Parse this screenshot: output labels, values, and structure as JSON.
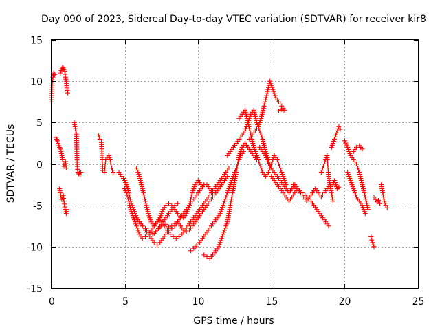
{
  "chart_data": {
    "type": "scatter",
    "title": "Day 090 of 2023, Sidereal Day-to-day VTEC variation (SDTVAR) for receiver kir8",
    "xlabel": "GPS time / hours",
    "ylabel": "SDTVAR / TECUs",
    "xlim": [
      0,
      25
    ],
    "ylim": [
      -15,
      15
    ],
    "xticks": [
      0,
      5,
      10,
      15,
      20,
      25
    ],
    "xtick_labels": [
      "0",
      "5",
      "10",
      "15",
      "20",
      "25"
    ],
    "yticks": [
      -15,
      -10,
      -5,
      0,
      5,
      10,
      15
    ],
    "ytick_labels": [
      "-15",
      "-10",
      "-5",
      "0",
      "5",
      "10",
      "15"
    ],
    "grid": true,
    "marker": "plus",
    "color": "#ff0000",
    "series": [
      {
        "name": "s01",
        "x": [
          0.0,
          0.05,
          0.1,
          0.15,
          0.2
        ],
        "y": [
          7.5,
          9.8,
          10.5,
          11.0,
          10.8
        ]
      },
      {
        "name": "s02",
        "x": [
          0.3,
          0.35,
          0.4,
          0.45,
          0.5,
          0.55,
          0.6,
          0.65,
          0.7,
          0.75,
          0.8,
          0.85,
          0.9,
          0.95,
          1.0
        ],
        "y": [
          3.2,
          3.0,
          2.8,
          2.5,
          2.2,
          2.0,
          1.8,
          1.5,
          1.0,
          0.5,
          0.0,
          -0.3,
          0.0,
          0.3,
          -0.5
        ]
      },
      {
        "name": "s03",
        "x": [
          0.6,
          0.65,
          0.7,
          0.75,
          0.8,
          0.85,
          0.9,
          0.95,
          1.0,
          1.05,
          1.1
        ],
        "y": [
          11.0,
          11.3,
          11.5,
          11.7,
          11.6,
          11.4,
          11.2,
          10.5,
          10.0,
          9.2,
          8.6
        ]
      },
      {
        "name": "s04",
        "x": [
          0.55,
          0.6,
          0.65,
          0.7,
          0.75,
          0.8,
          0.85,
          0.9,
          0.95,
          1.0,
          1.05
        ],
        "y": [
          -3.0,
          -3.5,
          -4.0,
          -4.3,
          -4.0,
          -3.8,
          -4.5,
          -5.2,
          -5.8,
          -6.0,
          -5.5
        ]
      },
      {
        "name": "s05",
        "x": [
          1.55,
          1.6,
          1.65,
          1.7,
          1.75,
          1.8,
          1.85,
          1.9,
          1.95,
          2.0
        ],
        "y": [
          5.0,
          4.5,
          4.0,
          3.6,
          -0.3,
          -1.0,
          -1.2,
          -1.1,
          -1.3,
          -1.0
        ]
      },
      {
        "name": "s06",
        "x": [
          3.2,
          3.3,
          3.4,
          3.5,
          3.6,
          3.7,
          3.8,
          3.9,
          4.0,
          4.1,
          4.2
        ],
        "y": [
          3.5,
          3.0,
          2.6,
          -0.8,
          -1.0,
          0.5,
          0.8,
          1.0,
          0.5,
          -0.5,
          -1.0
        ]
      },
      {
        "name": "s07",
        "x": [
          4.6,
          4.8,
          5.0,
          5.2,
          5.4,
          5.6,
          5.8,
          6.0,
          6.2,
          6.4,
          6.6,
          6.8,
          7.0,
          7.2,
          7.4,
          7.6,
          7.8,
          8.0,
          8.2,
          8.4,
          8.6
        ],
        "y": [
          -1.0,
          -1.5,
          -2.0,
          -3.0,
          -4.5,
          -5.5,
          -6.5,
          -7.0,
          -7.5,
          -7.8,
          -8.0,
          -8.2,
          -8.4,
          -8.0,
          -7.6,
          -7.0,
          -6.5,
          -6.0,
          -5.5,
          -5.0,
          -4.8
        ]
      },
      {
        "name": "s08",
        "x": [
          5.8,
          6.0,
          6.2,
          6.4,
          6.6,
          6.8,
          7.0,
          7.2,
          7.4,
          7.6,
          7.8,
          8.0,
          8.2,
          8.4,
          8.6,
          8.8,
          9.0,
          9.2,
          9.4,
          9.6,
          9.8,
          10.0,
          10.2
        ],
        "y": [
          -0.5,
          -1.5,
          -3.0,
          -4.5,
          -6.0,
          -7.0,
          -7.5,
          -7.0,
          -6.5,
          -5.5,
          -5.0,
          -4.8,
          -5.0,
          -5.5,
          -6.0,
          -6.3,
          -6.5,
          -6.0,
          -5.0,
          -3.5,
          -2.5,
          -2.0,
          -2.5
        ]
      },
      {
        "name": "s09",
        "x": [
          5.0,
          5.2,
          5.4,
          5.6,
          5.8,
          6.0,
          6.2,
          6.4,
          6.6,
          6.8,
          7.0,
          7.2,
          7.4,
          7.6,
          7.8,
          8.0,
          8.2,
          8.4,
          8.6,
          8.8,
          9.0,
          9.2,
          9.4,
          9.6,
          9.8,
          10.0,
          10.2,
          10.4,
          10.6,
          10.8,
          11.0,
          11.2,
          11.4
        ],
        "y": [
          -3.0,
          -4.0,
          -5.5,
          -6.5,
          -7.5,
          -8.5,
          -9.0,
          -8.8,
          -8.5,
          -8.0,
          -7.5,
          -7.0,
          -6.8,
          -7.0,
          -7.3,
          -7.6,
          -7.8,
          -7.5,
          -7.0,
          -6.5,
          -6.0,
          -5.5,
          -5.0,
          -4.5,
          -4.0,
          -3.5,
          -3.0,
          -2.5,
          -2.5,
          -3.0,
          -3.5,
          -3.5,
          -3.0
        ]
      },
      {
        "name": "s10",
        "x": [
          6.0,
          6.2,
          6.4,
          6.6,
          6.8,
          7.0,
          7.2,
          7.4,
          7.6,
          7.8,
          8.0,
          8.2,
          8.4,
          8.6,
          8.8,
          9.0,
          9.2,
          9.4,
          9.6,
          9.8,
          10.0,
          10.2,
          10.4,
          10.6,
          10.8,
          11.0,
          11.2,
          11.4,
          11.6,
          11.8,
          12.0
        ],
        "y": [
          -7.0,
          -7.5,
          -8.0,
          -8.5,
          -9.0,
          -9.5,
          -9.8,
          -9.5,
          -9.0,
          -8.5,
          -8.0,
          -7.5,
          -7.2,
          -7.0,
          -7.5,
          -8.0,
          -8.2,
          -8.0,
          -7.5,
          -7.0,
          -6.5,
          -6.0,
          -5.5,
          -5.0,
          -4.5,
          -4.0,
          -3.5,
          -3.0,
          -2.5,
          -2.0,
          -1.5
        ]
      },
      {
        "name": "s11",
        "x": [
          6.5,
          6.7,
          6.9,
          7.1,
          7.3,
          7.5,
          7.7,
          7.9,
          8.1,
          8.3,
          8.5,
          8.7,
          8.9,
          9.1,
          9.3,
          9.5,
          9.7,
          9.9,
          10.1,
          10.3,
          10.5,
          10.7,
          10.9,
          11.1,
          11.3,
          11.5,
          11.7,
          11.9,
          12.1
        ],
        "y": [
          -8.0,
          -8.3,
          -8.5,
          -8.2,
          -7.8,
          -7.5,
          -7.5,
          -8.0,
          -8.5,
          -8.8,
          -9.0,
          -8.8,
          -8.5,
          -8.0,
          -7.5,
          -7.0,
          -6.5,
          -6.0,
          -5.5,
          -5.0,
          -4.5,
          -4.0,
          -3.5,
          -3.0,
          -2.5,
          -2.0,
          -1.5,
          -1.0,
          -0.5
        ]
      },
      {
        "name": "s12",
        "x": [
          9.5,
          9.7,
          9.9,
          10.1,
          10.3,
          10.5,
          10.7,
          10.9,
          11.1,
          11.3,
          11.5,
          11.7,
          11.9,
          12.1,
          12.3,
          12.5,
          12.7,
          12.9,
          13.1
        ],
        "y": [
          -10.5,
          -10.2,
          -9.8,
          -9.5,
          -9.0,
          -8.5,
          -8.0,
          -7.5,
          -7.0,
          -6.5,
          -6.0,
          -5.0,
          -4.0,
          -3.0,
          -2.0,
          -1.0,
          0.0,
          1.0,
          1.5
        ]
      },
      {
        "name": "s13",
        "x": [
          10.4,
          10.6,
          10.8,
          11.0,
          11.2,
          11.4,
          11.6,
          11.8,
          12.0,
          12.2,
          12.4,
          12.6,
          12.8,
          13.0,
          13.2,
          13.4,
          13.6,
          13.8,
          14.0
        ],
        "y": [
          -11.0,
          -11.2,
          -11.4,
          -11.0,
          -10.5,
          -10.0,
          -9.0,
          -8.0,
          -7.0,
          -5.0,
          -3.0,
          -1.0,
          1.0,
          2.0,
          2.5,
          2.0,
          1.5,
          1.0,
          0.5
        ]
      },
      {
        "name": "s14",
        "x": [
          12.0,
          12.2,
          12.4,
          12.6,
          12.8,
          13.0,
          13.2,
          13.4,
          13.6,
          13.8,
          14.0,
          14.2,
          14.4,
          14.6,
          14.8,
          15.0,
          15.2
        ],
        "y": [
          1.0,
          1.5,
          2.0,
          2.5,
          3.0,
          3.5,
          4.0,
          5.0,
          6.0,
          6.5,
          5.0,
          4.0,
          3.0,
          1.5,
          0.5,
          -0.5,
          -1.0
        ]
      },
      {
        "name": "s15",
        "x": [
          12.8,
          13.0,
          13.2,
          13.4,
          13.6,
          13.8,
          14.0,
          14.2,
          14.4,
          14.6,
          14.8,
          15.0,
          15.2,
          15.4,
          15.6,
          15.8,
          16.0
        ],
        "y": [
          5.5,
          6.0,
          6.5,
          5.0,
          3.5,
          2.0,
          1.0,
          0.0,
          -1.0,
          -1.5,
          -1.0,
          0.0,
          1.0,
          0.5,
          -0.5,
          -1.5,
          -2.5
        ]
      },
      {
        "name": "s16",
        "x": [
          13.5,
          13.7,
          13.9,
          14.1,
          14.3,
          14.5,
          14.7,
          14.9,
          15.1,
          15.3,
          15.5,
          15.7,
          15.9
        ],
        "y": [
          3.0,
          3.5,
          4.0,
          4.5,
          5.5,
          7.0,
          8.5,
          10.0,
          9.0,
          8.0,
          7.5,
          7.0,
          6.5
        ]
      },
      {
        "name": "s17",
        "x": [
          14.2,
          14.4,
          14.6,
          14.8,
          15.0,
          15.2,
          15.4,
          15.6,
          15.8,
          16.0,
          16.2,
          16.4,
          16.6,
          16.8,
          17.0
        ],
        "y": [
          2.0,
          1.5,
          1.0,
          0.0,
          -0.5,
          -1.0,
          -1.5,
          -2.0,
          -2.5,
          -3.0,
          -3.5,
          -3.0,
          -2.5,
          -3.0,
          -3.5
        ]
      },
      {
        "name": "s18",
        "x": [
          15.0,
          15.2,
          15.4,
          15.6,
          15.8,
          16.0,
          16.2,
          16.4,
          16.6,
          16.8,
          17.0,
          17.2,
          17.4,
          17.6,
          17.8,
          18.0,
          18.2,
          18.4,
          18.6,
          18.8,
          19.0
        ],
        "y": [
          -1.5,
          -2.0,
          -2.5,
          -3.0,
          -3.5,
          -4.0,
          -4.5,
          -4.0,
          -3.5,
          -3.0,
          -3.5,
          -4.0,
          -4.5,
          -4.0,
          -3.5,
          -3.0,
          -3.5,
          -4.0,
          -3.5,
          -3.0,
          -2.5
        ]
      },
      {
        "name": "s19",
        "x": [
          16.5,
          16.7,
          16.9,
          17.1,
          17.3,
          17.5,
          17.7,
          17.9,
          18.1,
          18.3,
          18.5,
          18.7,
          18.9
        ],
        "y": [
          -2.5,
          -3.0,
          -3.2,
          -3.5,
          -3.8,
          -4.2,
          -4.5,
          -5.0,
          -5.5,
          -6.0,
          -6.5,
          -7.0,
          -7.5
        ]
      },
      {
        "name": "s20",
        "x": [
          15.5,
          15.6,
          15.7,
          15.8
        ],
        "y": [
          6.4,
          6.5,
          6.6,
          6.4
        ]
      },
      {
        "name": "s21",
        "x": [
          18.4,
          18.5,
          18.6,
          18.7,
          18.8,
          18.9,
          19.0,
          19.1,
          19.2
        ],
        "y": [
          -1.0,
          -0.5,
          0.0,
          0.5,
          1.0,
          -1.5,
          -2.5,
          -3.5,
          -4.5
        ]
      },
      {
        "name": "s22",
        "x": [
          19.2,
          19.3,
          19.4,
          19.5,
          19.6
        ],
        "y": [
          -2.5,
          -2.0,
          -2.5,
          -3.0,
          -2.8
        ]
      },
      {
        "name": "s23",
        "x": [
          19.1,
          19.2,
          19.3,
          19.4,
          19.5,
          19.6,
          19.7
        ],
        "y": [
          2.0,
          2.5,
          3.0,
          3.5,
          4.0,
          4.5,
          4.2
        ]
      },
      {
        "name": "s24",
        "x": [
          20.0,
          20.2,
          20.4,
          20.6,
          20.8,
          21.0,
          21.2,
          21.4,
          21.6
        ],
        "y": [
          2.8,
          2.0,
          1.0,
          0.5,
          0.0,
          -1.0,
          -2.5,
          -4.0,
          -5.5
        ]
      },
      {
        "name": "s25",
        "x": [
          20.2,
          20.4,
          20.6,
          20.8,
          21.0,
          21.2,
          21.4
        ],
        "y": [
          -1.0,
          -2.0,
          -3.0,
          -4.0,
          -4.5,
          -5.0,
          -6.0
        ]
      },
      {
        "name": "s26",
        "x": [
          20.6,
          20.8,
          21.0,
          21.2
        ],
        "y": [
          1.5,
          2.0,
          2.2,
          1.8
        ]
      },
      {
        "name": "s27",
        "x": [
          21.8,
          21.85,
          21.9,
          21.95,
          22.0
        ],
        "y": [
          -8.8,
          -9.2,
          -9.5,
          -9.8,
          -10.0
        ]
      },
      {
        "name": "s28",
        "x": [
          22.0,
          22.1,
          22.2,
          22.3,
          22.4
        ],
        "y": [
          -4.0,
          -4.3,
          -4.6,
          -4.4,
          -4.8
        ]
      },
      {
        "name": "s29",
        "x": [
          22.5,
          22.6,
          22.7,
          22.8,
          22.9
        ],
        "y": [
          -2.5,
          -3.5,
          -4.5,
          -5.0,
          -5.3
        ]
      }
    ]
  }
}
